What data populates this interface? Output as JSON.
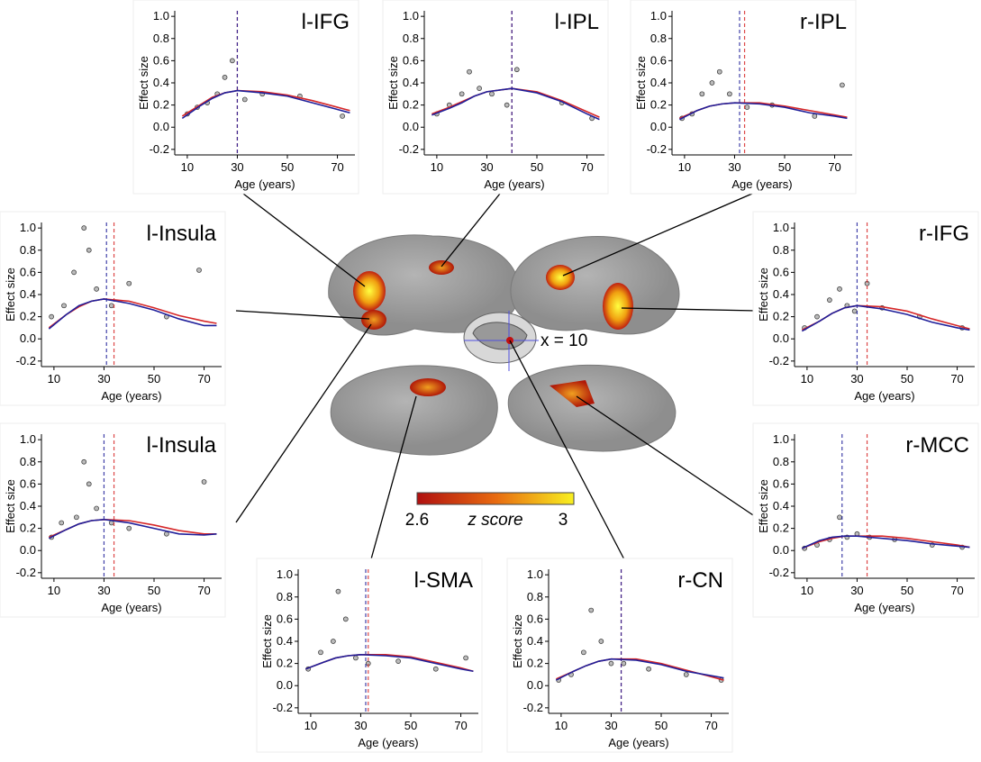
{
  "chart_data": [
    {
      "type": "line",
      "title": "l-IFG",
      "xlabel": "Age (years)",
      "ylabel": "Effect size",
      "xlim": [
        5,
        77
      ],
      "ylim": [
        -0.25,
        1.05
      ],
      "xticks": [
        10,
        30,
        50,
        70
      ],
      "yticks": [
        -0.2,
        {
          "value": 0,
          "label": "0.0"
        },
        0.2,
        0.4,
        0.6,
        0.8,
        {
          "value": 1,
          "label": "1.0"
        }
      ],
      "x": [
        8,
        15,
        20,
        25,
        30,
        40,
        50,
        60,
        70,
        75
      ],
      "series": [
        {
          "color": "#d62728",
          "peak": 30,
          "values": [
            0.1,
            0.2,
            0.27,
            0.31,
            0.33,
            0.32,
            0.29,
            0.24,
            0.18,
            0.15
          ]
        },
        {
          "color": "#1f1f9a",
          "peak": 30,
          "values": [
            0.08,
            0.19,
            0.26,
            0.31,
            0.33,
            0.31,
            0.28,
            0.22,
            0.16,
            0.13
          ]
        }
      ],
      "scatter": {
        "x": [
          10,
          14,
          18,
          22,
          25,
          28,
          33,
          40,
          55,
          72
        ],
        "y": [
          0.12,
          0.18,
          0.22,
          0.3,
          0.45,
          0.6,
          0.25,
          0.3,
          0.28,
          0.1
        ]
      }
    },
    {
      "type": "line",
      "title": "l-IPL",
      "xlabel": "Age (years)",
      "ylabel": "Effect size",
      "xlim": [
        5,
        77
      ],
      "ylim": [
        -0.25,
        1.05
      ],
      "xticks": [
        10,
        30,
        50,
        70
      ],
      "yticks": [
        -0.2,
        {
          "value": 0,
          "label": "0.0"
        },
        0.2,
        0.4,
        0.6,
        0.8,
        {
          "value": 1,
          "label": "1.0"
        }
      ],
      "x": [
        8,
        15,
        20,
        25,
        30,
        40,
        50,
        60,
        70,
        75
      ],
      "series": [
        {
          "color": "#d62728",
          "peak": 40,
          "values": [
            0.12,
            0.18,
            0.23,
            0.28,
            0.32,
            0.35,
            0.32,
            0.24,
            0.14,
            0.09
          ]
        },
        {
          "color": "#1f1f9a",
          "peak": 40,
          "values": [
            0.11,
            0.17,
            0.22,
            0.28,
            0.32,
            0.35,
            0.31,
            0.23,
            0.12,
            0.07
          ]
        }
      ],
      "scatter": {
        "x": [
          10,
          15,
          20,
          23,
          27,
          32,
          38,
          42,
          60,
          72
        ],
        "y": [
          0.12,
          0.2,
          0.3,
          0.5,
          0.35,
          0.3,
          0.2,
          0.52,
          0.22,
          0.08
        ]
      }
    },
    {
      "type": "line",
      "title": "r-IPL",
      "xlabel": "Age (years)",
      "ylabel": "Effect size",
      "xlim": [
        5,
        77
      ],
      "ylim": [
        -0.25,
        1.05
      ],
      "xticks": [
        10,
        30,
        50,
        70
      ],
      "yticks": [
        -0.2,
        {
          "value": 0,
          "label": "0.0"
        },
        0.2,
        0.4,
        0.6,
        0.8,
        {
          "value": 1,
          "label": "1.0"
        }
      ],
      "x": [
        8,
        15,
        20,
        25,
        30,
        40,
        50,
        60,
        70,
        75
      ],
      "series": [
        {
          "color": "#d62728",
          "peak": 34,
          "values": [
            0.08,
            0.15,
            0.19,
            0.21,
            0.22,
            0.22,
            0.19,
            0.15,
            0.11,
            0.09
          ]
        },
        {
          "color": "#1f1f9a",
          "peak": 32,
          "values": [
            0.07,
            0.15,
            0.19,
            0.21,
            0.22,
            0.21,
            0.18,
            0.13,
            0.1,
            0.08
          ]
        }
      ],
      "scatter": {
        "x": [
          9,
          13,
          17,
          21,
          24,
          28,
          35,
          45,
          62,
          73
        ],
        "y": [
          0.08,
          0.12,
          0.3,
          0.4,
          0.5,
          0.3,
          0.18,
          0.2,
          0.1,
          0.38
        ]
      }
    },
    {
      "type": "line",
      "title": "l-Insula",
      "xlabel": "Age (years)",
      "ylabel": "Effect size",
      "xlim": [
        5,
        77
      ],
      "ylim": [
        -0.25,
        1.05
      ],
      "xticks": [
        10,
        30,
        50,
        70
      ],
      "yticks": [
        -0.2,
        {
          "value": 0,
          "label": "0.0"
        },
        0.2,
        0.4,
        0.6,
        0.8,
        {
          "value": 1,
          "label": "1.0"
        }
      ],
      "x": [
        8,
        15,
        20,
        25,
        30,
        40,
        50,
        60,
        70,
        75
      ],
      "series": [
        {
          "color": "#d62728",
          "peak": 34,
          "values": [
            0.1,
            0.22,
            0.29,
            0.34,
            0.36,
            0.34,
            0.28,
            0.21,
            0.16,
            0.14
          ]
        },
        {
          "color": "#1f1f9a",
          "peak": 31,
          "values": [
            0.09,
            0.22,
            0.3,
            0.34,
            0.36,
            0.32,
            0.26,
            0.18,
            0.12,
            0.12
          ]
        }
      ],
      "scatter": {
        "x": [
          9,
          14,
          18,
          22,
          24,
          27,
          33,
          40,
          55,
          68
        ],
        "y": [
          0.2,
          0.3,
          0.6,
          1.0,
          0.8,
          0.45,
          0.3,
          0.5,
          0.2,
          0.62
        ]
      }
    },
    {
      "type": "line",
      "title": "r-IFG",
      "xlabel": "Age (years)",
      "ylabel": "Effect size",
      "xlim": [
        5,
        77
      ],
      "ylim": [
        -0.25,
        1.05
      ],
      "xticks": [
        10,
        30,
        50,
        70
      ],
      "yticks": [
        -0.2,
        {
          "value": 0,
          "label": "0.0"
        },
        0.2,
        0.4,
        0.6,
        0.8,
        {
          "value": 1,
          "label": "1.0"
        }
      ],
      "x": [
        8,
        15,
        20,
        25,
        30,
        40,
        50,
        60,
        70,
        75
      ],
      "series": [
        {
          "color": "#d62728",
          "peak": 34,
          "values": [
            0.08,
            0.16,
            0.23,
            0.28,
            0.3,
            0.29,
            0.25,
            0.18,
            0.12,
            0.09
          ]
        },
        {
          "color": "#1f1f9a",
          "peak": 30,
          "values": [
            0.07,
            0.16,
            0.23,
            0.28,
            0.3,
            0.27,
            0.22,
            0.15,
            0.1,
            0.08
          ]
        }
      ],
      "scatter": {
        "x": [
          9,
          14,
          19,
          23,
          26,
          29,
          34,
          40,
          55,
          72
        ],
        "y": [
          0.1,
          0.2,
          0.35,
          0.45,
          0.3,
          0.25,
          0.5,
          0.28,
          0.2,
          0.1
        ]
      }
    },
    {
      "type": "line",
      "title": "l-Insula",
      "xlabel": "Age (years)",
      "ylabel": "Effect size",
      "xlim": [
        5,
        77
      ],
      "ylim": [
        -0.25,
        1.05
      ],
      "xticks": [
        10,
        30,
        50,
        70
      ],
      "yticks": [
        -0.2,
        {
          "value": 0,
          "label": "0.0"
        },
        0.2,
        0.4,
        0.6,
        0.8,
        {
          "value": 1,
          "label": "1.0"
        }
      ],
      "x": [
        8,
        15,
        20,
        25,
        30,
        40,
        50,
        60,
        70,
        75
      ],
      "series": [
        {
          "color": "#d62728",
          "peak": 34,
          "values": [
            0.12,
            0.19,
            0.24,
            0.27,
            0.28,
            0.27,
            0.23,
            0.18,
            0.15,
            0.15
          ]
        },
        {
          "color": "#1f1f9a",
          "peak": 30,
          "values": [
            0.11,
            0.19,
            0.24,
            0.27,
            0.28,
            0.25,
            0.2,
            0.15,
            0.14,
            0.15
          ]
        }
      ],
      "scatter": {
        "x": [
          9,
          13,
          19,
          22,
          24,
          27,
          33,
          40,
          55,
          70
        ],
        "y": [
          0.12,
          0.25,
          0.3,
          0.8,
          0.6,
          0.38,
          0.25,
          0.2,
          0.15,
          0.62
        ]
      }
    },
    {
      "type": "line",
      "title": "r-MCC",
      "xlabel": "Age (years)",
      "ylabel": "Effect size",
      "xlim": [
        5,
        77
      ],
      "ylim": [
        -0.25,
        1.05
      ],
      "xticks": [
        10,
        30,
        50,
        70
      ],
      "yticks": [
        -0.2,
        {
          "value": 0,
          "label": "0.0"
        },
        0.2,
        0.4,
        0.6,
        0.8,
        {
          "value": 1,
          "label": "1.0"
        }
      ],
      "x": [
        8,
        15,
        20,
        25,
        30,
        40,
        50,
        60,
        70,
        75
      ],
      "series": [
        {
          "color": "#d62728",
          "peak": 34,
          "values": [
            0.02,
            0.08,
            0.11,
            0.13,
            0.13,
            0.13,
            0.11,
            0.08,
            0.05,
            0.03
          ]
        },
        {
          "color": "#1f1f9a",
          "peak": 24,
          "values": [
            0.02,
            0.09,
            0.12,
            0.13,
            0.13,
            0.11,
            0.09,
            0.06,
            0.04,
            0.03
          ]
        }
      ],
      "scatter": {
        "x": [
          9,
          14,
          19,
          23,
          26,
          30,
          35,
          45,
          60,
          72
        ],
        "y": [
          0.02,
          0.05,
          0.1,
          0.3,
          0.12,
          0.15,
          0.12,
          0.1,
          0.05,
          0.03
        ]
      }
    },
    {
      "type": "line",
      "title": "l-SMA",
      "xlabel": "Age (years)",
      "ylabel": "Effect size",
      "xlim": [
        5,
        77
      ],
      "ylim": [
        -0.25,
        1.05
      ],
      "xticks": [
        10,
        30,
        50,
        70
      ],
      "yticks": [
        -0.2,
        {
          "value": 0,
          "label": "0.0"
        },
        0.2,
        0.4,
        0.6,
        0.8,
        {
          "value": 1,
          "label": "1.0"
        }
      ],
      "x": [
        8,
        15,
        20,
        25,
        30,
        40,
        50,
        60,
        70,
        75
      ],
      "series": [
        {
          "color": "#d62728",
          "peak": 33,
          "values": [
            0.15,
            0.21,
            0.25,
            0.27,
            0.28,
            0.28,
            0.26,
            0.21,
            0.16,
            0.13
          ]
        },
        {
          "color": "#1f1f9a",
          "peak": 32,
          "values": [
            0.15,
            0.21,
            0.25,
            0.27,
            0.28,
            0.27,
            0.25,
            0.2,
            0.15,
            0.13
          ]
        }
      ],
      "scatter": {
        "x": [
          9,
          14,
          19,
          21,
          24,
          28,
          33,
          45,
          60,
          72
        ],
        "y": [
          0.15,
          0.3,
          0.4,
          0.85,
          0.6,
          0.25,
          0.2,
          0.22,
          0.15,
          0.25
        ]
      }
    },
    {
      "type": "line",
      "title": "r-CN",
      "xlabel": "Age (years)",
      "ylabel": "Effect size",
      "xlim": [
        5,
        77
      ],
      "ylim": [
        -0.25,
        1.05
      ],
      "xticks": [
        10,
        30,
        50,
        70
      ],
      "yticks": [
        -0.2,
        {
          "value": 0,
          "label": "0.0"
        },
        0.2,
        0.4,
        0.6,
        0.8,
        {
          "value": 1,
          "label": "1.0"
        }
      ],
      "x": [
        8,
        15,
        20,
        25,
        30,
        40,
        50,
        60,
        70,
        75
      ],
      "series": [
        {
          "color": "#d62728",
          "peak": 34,
          "values": [
            0.06,
            0.13,
            0.18,
            0.22,
            0.24,
            0.24,
            0.2,
            0.14,
            0.08,
            0.05
          ]
        },
        {
          "color": "#1f1f9a",
          "peak": 34,
          "values": [
            0.05,
            0.13,
            0.18,
            0.22,
            0.24,
            0.23,
            0.19,
            0.13,
            0.09,
            0.07
          ]
        }
      ],
      "scatter": {
        "x": [
          9,
          14,
          19,
          22,
          26,
          30,
          35,
          45,
          60,
          74
        ],
        "y": [
          0.05,
          0.1,
          0.3,
          0.68,
          0.4,
          0.2,
          0.2,
          0.15,
          0.1,
          0.05
        ]
      }
    }
  ],
  "colorbar": {
    "min": 2.6,
    "max": 3.0,
    "label": "z score"
  },
  "slice_label": "x = 10"
}
